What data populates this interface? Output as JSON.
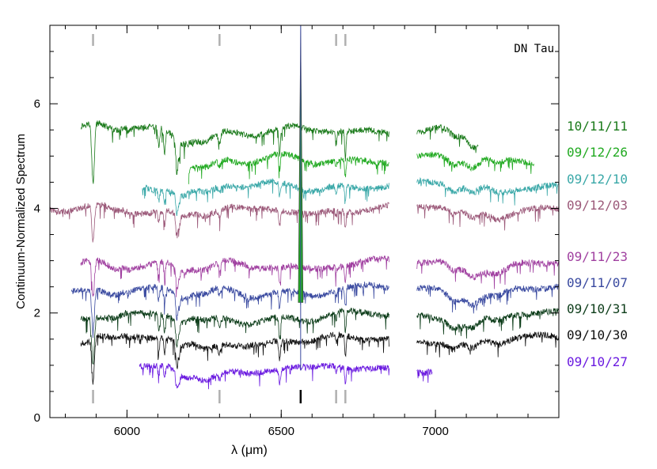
{
  "chart_data": {
    "type": "line",
    "title": "",
    "object_label": "DN Tau",
    "xlabel": "λ (μm)",
    "ylabel": "Continuum-Normalized Spectrum",
    "xlim": [
      5750,
      7400
    ],
    "ylim": [
      0,
      7.5
    ],
    "x_ticks": [
      6000,
      6500,
      7000
    ],
    "y_ticks": [
      0,
      2,
      4,
      6
    ],
    "grid": false,
    "legend": "right-side-labels",
    "line_marks": {
      "color_gray": "#b0b0b0",
      "color_black": "#000000",
      "gray_positions": [
        5890,
        6300,
        6678,
        6708
      ],
      "black_positions": [
        6563
      ]
    },
    "emission_line": {
      "x": 6563,
      "peak": 7.5,
      "color": "#22aa22"
    },
    "series": [
      {
        "name": "10/11/11",
        "color": "#1a7a1a",
        "offset": 5.5,
        "segments": [
          [
            5850,
            6850
          ],
          [
            6940,
            7140
          ]
        ],
        "abs_depth": 0.9,
        "slope_after": 7050
      },
      {
        "name": "09/12/26",
        "color": "#22aa22",
        "offset": 4.95,
        "segments": [
          [
            6200,
            6850
          ],
          [
            6940,
            7320
          ]
        ],
        "abs_depth": 0.5
      },
      {
        "name": "09/12/10",
        "color": "#3aa8a8",
        "offset": 4.45,
        "segments": [
          [
            6050,
            6850
          ],
          [
            6940,
            7400
          ]
        ],
        "abs_depth": 0.5
      },
      {
        "name": "09/12/03",
        "color": "#9c5a7a",
        "offset": 4.0,
        "segments": [
          [
            5750,
            6850
          ],
          [
            6940,
            7400
          ]
        ],
        "abs_depth": 0.55
      },
      {
        "name": "09/11/23",
        "color": "#a040a0",
        "offset": 2.95,
        "segments": [
          [
            5850,
            6850
          ],
          [
            6940,
            7400
          ]
        ],
        "abs_depth": 0.55
      },
      {
        "name": "09/11/07",
        "color": "#3a4aa0",
        "offset": 2.45,
        "segments": [
          [
            5820,
            6850
          ],
          [
            6940,
            7400
          ]
        ],
        "abs_depth": 0.6
      },
      {
        "name": "09/10/31",
        "color": "#0d3d1a",
        "offset": 1.95,
        "segments": [
          [
            5850,
            6850
          ],
          [
            6940,
            7400
          ]
        ],
        "abs_depth": 0.7
      },
      {
        "name": "09/10/30",
        "color": "#111111",
        "offset": 1.5,
        "segments": [
          [
            5850,
            6850
          ],
          [
            6940,
            7400
          ]
        ],
        "abs_depth": 0.65
      },
      {
        "name": "09/10/27",
        "color": "#6a1ae0",
        "offset": 0.95,
        "segments": [
          [
            6040,
            6850
          ],
          [
            6940,
            6990
          ]
        ],
        "abs_depth": 0.45
      }
    ]
  }
}
